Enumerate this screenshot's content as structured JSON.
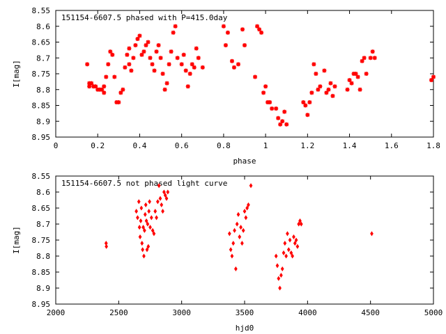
{
  "chart_data": [
    {
      "type": "scatter",
      "title": "151154-6607.5 phased with P=415.0day",
      "xlabel": "phase",
      "ylabel": "I[mag]",
      "xlim": [
        0,
        1.8
      ],
      "ylim": [
        8.95,
        8.55
      ],
      "y_inverted": true,
      "xticks": [
        "0",
        "0.2",
        "0.4",
        "0.6",
        "0.8",
        "1",
        "1.2",
        "1.4",
        "1.6",
        "1.8"
      ],
      "yticks": [
        "8.55",
        "8.6",
        "8.65",
        "8.7",
        "8.75",
        "8.8",
        "8.85",
        "8.9",
        "8.95"
      ],
      "marker": "star",
      "color": "#ff0000",
      "x": [
        0.15,
        0.16,
        0.16,
        0.17,
        0.18,
        0.19,
        0.2,
        0.21,
        0.22,
        0.23,
        0.23,
        0.24,
        0.25,
        0.26,
        0.27,
        0.28,
        0.29,
        0.3,
        0.31,
        0.32,
        0.33,
        0.34,
        0.35,
        0.35,
        0.36,
        0.37,
        0.38,
        0.39,
        0.4,
        0.41,
        0.42,
        0.43,
        0.44,
        0.45,
        0.46,
        0.47,
        0.48,
        0.49,
        0.5,
        0.51,
        0.52,
        0.53,
        0.54,
        0.55,
        0.56,
        0.57,
        0.58,
        0.6,
        0.61,
        0.62,
        0.63,
        0.64,
        0.65,
        0.66,
        0.67,
        0.68,
        0.7,
        0.8,
        0.81,
        0.82,
        0.84,
        0.85,
        0.87,
        0.89,
        0.9,
        0.95,
        0.96,
        0.97,
        0.98,
        0.99,
        1.0,
        1.01,
        1.02,
        1.03,
        1.05,
        1.06,
        1.07,
        1.08,
        1.09,
        1.1,
        1.18,
        1.19,
        1.2,
        1.21,
        1.22,
        1.23,
        1.24,
        1.25,
        1.26,
        1.28,
        1.29,
        1.3,
        1.31,
        1.32,
        1.33,
        1.39,
        1.4,
        1.41,
        1.42,
        1.43,
        1.44,
        1.45,
        1.46,
        1.47,
        1.48,
        1.5,
        1.51,
        1.52,
        1.79,
        1.8
      ],
      "y": [
        8.72,
        8.78,
        8.79,
        8.78,
        8.79,
        8.79,
        8.8,
        8.8,
        8.8,
        8.79,
        8.81,
        8.76,
        8.72,
        8.68,
        8.69,
        8.76,
        8.84,
        8.84,
        8.81,
        8.8,
        8.73,
        8.69,
        8.67,
        8.72,
        8.74,
        8.7,
        8.66,
        8.64,
        8.63,
        8.69,
        8.68,
        8.66,
        8.65,
        8.7,
        8.72,
        8.74,
        8.68,
        8.66,
        8.7,
        8.75,
        8.8,
        8.78,
        8.72,
        8.68,
        8.62,
        8.6,
        8.7,
        8.72,
        8.69,
        8.74,
        8.79,
        8.75,
        8.72,
        8.73,
        8.67,
        8.7,
        8.73,
        8.6,
        8.66,
        8.62,
        8.71,
        8.73,
        8.72,
        8.61,
        8.66,
        8.76,
        8.6,
        8.61,
        8.62,
        8.81,
        8.79,
        8.84,
        8.84,
        8.86,
        8.86,
        8.89,
        8.91,
        8.9,
        8.87,
        8.91,
        8.84,
        8.85,
        8.88,
        8.84,
        8.81,
        8.72,
        8.75,
        8.8,
        8.79,
        8.74,
        8.81,
        8.8,
        8.78,
        8.82,
        8.79,
        8.8,
        8.77,
        8.78,
        8.75,
        8.75,
        8.76,
        8.8,
        8.71,
        8.7,
        8.75,
        8.7,
        8.68,
        8.7,
        8.77,
        8.76
      ]
    },
    {
      "type": "scatter",
      "title": "151154-6607.5 not phased light curve",
      "xlabel": "hjd0",
      "ylabel": "I[mag]",
      "xlim": [
        2000,
        5000
      ],
      "ylim": [
        8.95,
        8.55
      ],
      "y_inverted": true,
      "xticks": [
        "2000",
        "2500",
        "3000",
        "3500",
        "4000",
        "4500",
        "5000"
      ],
      "yticks": [
        "8.55",
        "8.6",
        "8.65",
        "8.7",
        "8.75",
        "8.8",
        "8.85",
        "8.9",
        "8.95"
      ],
      "marker": "diamond",
      "color": "#ff0000",
      "x": [
        2400,
        2402,
        2640,
        2650,
        2660,
        2665,
        2670,
        2675,
        2680,
        2685,
        2690,
        2695,
        2700,
        2705,
        2710,
        2715,
        2720,
        2725,
        2730,
        2735,
        2740,
        2745,
        2750,
        2760,
        2770,
        2780,
        2790,
        2800,
        2810,
        2820,
        2830,
        2840,
        2850,
        2860,
        2870,
        2880,
        2890,
        3380,
        3390,
        3400,
        3410,
        3420,
        3430,
        3440,
        3450,
        3460,
        3470,
        3480,
        3490,
        3500,
        3510,
        3520,
        3530,
        3550,
        3750,
        3760,
        3770,
        3780,
        3790,
        3800,
        3810,
        3820,
        3830,
        3840,
        3850,
        3860,
        3870,
        3880,
        3890,
        3900,
        3910,
        3920,
        3930,
        3940,
        3950,
        4510
      ],
      "y": [
        8.76,
        8.77,
        8.66,
        8.68,
        8.63,
        8.71,
        8.74,
        8.69,
        8.65,
        8.76,
        8.78,
        8.71,
        8.8,
        8.72,
        8.67,
        8.64,
        8.69,
        8.78,
        8.7,
        8.77,
        8.66,
        8.63,
        8.71,
        8.68,
        8.72,
        8.73,
        8.66,
        8.68,
        8.63,
        8.58,
        8.62,
        8.64,
        8.66,
        8.6,
        8.61,
        8.62,
        8.6,
        8.73,
        8.78,
        8.8,
        8.76,
        8.72,
        8.84,
        8.7,
        8.67,
        8.74,
        8.71,
        8.76,
        8.72,
        8.66,
        8.68,
        8.65,
        8.64,
        8.58,
        8.8,
        8.83,
        8.87,
        8.9,
        8.86,
        8.84,
        8.79,
        8.76,
        8.8,
        8.73,
        8.78,
        8.75,
        8.79,
        8.8,
        8.74,
        8.76,
        8.75,
        8.77,
        8.7,
        8.69,
        8.7,
        8.73
      ]
    }
  ]
}
